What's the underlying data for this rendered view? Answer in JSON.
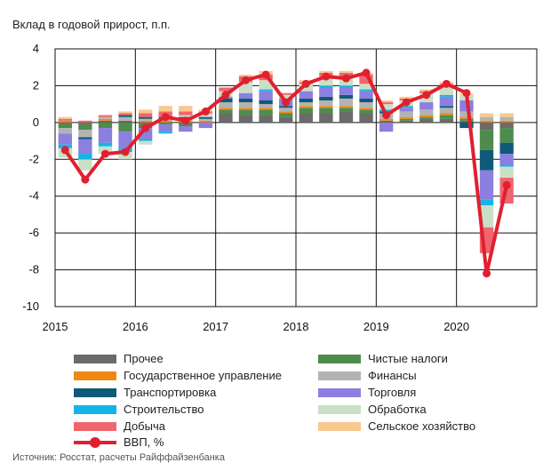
{
  "chart_data": {
    "type": "bar",
    "stacked": true,
    "title": "Вклад в годовой прирост, п.п.",
    "ylim": [
      -10,
      4
    ],
    "yticks": [
      4,
      2,
      0,
      -2,
      -4,
      -6,
      -8,
      -10
    ],
    "year_labels": [
      "2015",
      "2016",
      "2017",
      "2018",
      "2019",
      "2020"
    ],
    "legend": [
      "Прочее",
      "Чистые налоги",
      "Государственное управление",
      "Финансы",
      "Транспортировка",
      "Торговля",
      "Строительство",
      "Обработка",
      "Добыча",
      "Сельское хозяйство",
      "ВВП, %"
    ],
    "categories": [
      "2015Q1",
      "2015Q2",
      "2015Q3",
      "2015Q4",
      "2016Q1",
      "2016Q2",
      "2016Q3",
      "2016Q4",
      "2017Q1",
      "2017Q2",
      "2017Q3",
      "2017Q4",
      "2018Q1",
      "2018Q2",
      "2018Q3",
      "2018Q4",
      "2019Q1",
      "2019Q2",
      "2019Q3",
      "2019Q4",
      "2020Q1",
      "2020Q2",
      "2020Q3"
    ],
    "series": [
      {
        "name": "Прочее",
        "color": "#6b6b6b",
        "values": [
          -0.1,
          -0.1,
          0.1,
          0.1,
          -0.1,
          0.0,
          -0.1,
          0.0,
          0.5,
          0.4,
          0.4,
          0.3,
          0.5,
          0.5,
          0.6,
          0.5,
          0.1,
          0.1,
          0.2,
          0.2,
          0.1,
          -0.4,
          -0.3
        ]
      },
      {
        "name": "Чистые налоги",
        "color": "#4e8c4e",
        "values": [
          -0.2,
          -0.3,
          -0.3,
          -0.5,
          -0.2,
          -0.1,
          -0.1,
          0.0,
          0.2,
          0.3,
          0.3,
          0.2,
          0.3,
          0.3,
          0.2,
          0.2,
          0.0,
          0.1,
          0.1,
          0.2,
          0.1,
          -1.1,
          -0.8
        ]
      },
      {
        "name": "Государственное управление",
        "color": "#ee8a14",
        "values": [
          0.1,
          0.0,
          0.1,
          0.0,
          0.1,
          0.1,
          0.1,
          0.1,
          0.1,
          0.1,
          0.1,
          0.1,
          0.1,
          0.1,
          0.1,
          0.1,
          0.1,
          0.1,
          0.1,
          0.1,
          0.1,
          0.1,
          0.1
        ]
      },
      {
        "name": "Финансы",
        "color": "#b3b3b3",
        "values": [
          -0.3,
          -0.4,
          0.1,
          0.2,
          0.1,
          0.1,
          0.1,
          0.1,
          0.3,
          0.3,
          0.2,
          0.2,
          0.2,
          0.3,
          0.4,
          0.3,
          0.3,
          0.3,
          0.3,
          0.3,
          0.3,
          0.2,
          0.2
        ]
      },
      {
        "name": "Транспортировка",
        "color": "#0f5a78",
        "values": [
          0.0,
          -0.1,
          0.0,
          0.1,
          0.1,
          0.1,
          0.1,
          0.1,
          0.2,
          0.2,
          0.2,
          0.1,
          0.2,
          0.2,
          0.2,
          0.2,
          0.1,
          0.0,
          0.0,
          0.1,
          -0.3,
          -1.1,
          -0.6
        ]
      },
      {
        "name": "Торговля",
        "color": "#8c7fe0",
        "values": [
          -0.6,
          -0.8,
          -0.8,
          -0.9,
          -0.6,
          -0.4,
          -0.3,
          -0.3,
          0.1,
          0.3,
          0.5,
          0.4,
          0.4,
          0.5,
          0.4,
          0.4,
          -0.5,
          0.2,
          0.4,
          0.5,
          0.6,
          -1.6,
          -0.6
        ]
      },
      {
        "name": "Строительство",
        "color": "#14b4e6",
        "values": [
          -0.2,
          -0.3,
          -0.2,
          -0.2,
          -0.1,
          -0.1,
          0.0,
          0.0,
          0.0,
          0.0,
          0.1,
          0.0,
          0.0,
          0.1,
          0.1,
          0.1,
          0.1,
          0.1,
          0.0,
          0.1,
          0.0,
          -0.3,
          -0.1
        ]
      },
      {
        "name": "Обработка",
        "color": "#c9dfc6",
        "values": [
          -0.5,
          -0.6,
          -0.4,
          -0.4,
          -0.2,
          0.0,
          0.1,
          0.2,
          0.3,
          0.6,
          0.5,
          0.2,
          0.4,
          0.5,
          0.4,
          0.3,
          0.3,
          0.3,
          0.5,
          0.5,
          0.3,
          -1.2,
          -0.6
        ]
      },
      {
        "name": "Добыча",
        "color": "#f0656e",
        "values": [
          0.1,
          0.1,
          0.1,
          0.1,
          0.2,
          0.3,
          0.2,
          0.1,
          0.2,
          0.3,
          0.3,
          0.1,
          0.1,
          0.2,
          0.3,
          0.5,
          0.1,
          0.1,
          0.1,
          0.1,
          0.0,
          -1.4,
          -1.4
        ]
      },
      {
        "name": "Сельское хозяйство",
        "color": "#f8c98e",
        "values": [
          0.1,
          0.0,
          0.0,
          0.1,
          0.2,
          0.3,
          0.3,
          0.1,
          0.0,
          0.1,
          0.2,
          0.0,
          0.1,
          0.1,
          0.1,
          0.1,
          0.1,
          0.1,
          0.1,
          0.1,
          0.1,
          0.2,
          0.2
        ]
      }
    ],
    "line": {
      "name": "ВВП, %",
      "color": "#e0202f",
      "values": [
        -1.5,
        -3.1,
        -1.7,
        -1.6,
        -0.3,
        0.3,
        0.1,
        0.6,
        1.5,
        2.3,
        2.6,
        1.1,
        2.1,
        2.5,
        2.4,
        2.7,
        0.4,
        1.1,
        1.5,
        2.1,
        1.6,
        -8.2,
        -3.4
      ]
    },
    "footnote": "Источник: Росстат, расчеты Райффайзенбанка"
  }
}
